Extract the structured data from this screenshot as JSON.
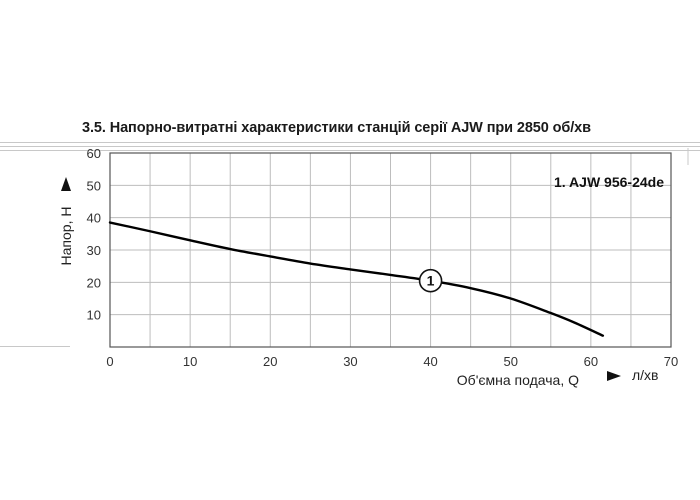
{
  "title": "3.5. Напорно-витратні характеристики станцій серії AJW при 2850 об/хв",
  "chart_data": {
    "type": "line",
    "xlabel": "Об'ємна подача, Q",
    "xunit": "л/хв",
    "ylabel": "Напор, Н",
    "xlim": [
      0,
      70
    ],
    "ylim": [
      0,
      60
    ],
    "x_ticks": [
      0,
      10,
      20,
      30,
      40,
      50,
      60,
      70
    ],
    "y_ticks": [
      10,
      20,
      30,
      40,
      50,
      60
    ],
    "grid": true,
    "legend_text": "1. AJW 956-24de",
    "series": [
      {
        "name": "1",
        "x": [
          0,
          5,
          10,
          15,
          20,
          25,
          30,
          35,
          40,
          45,
          50,
          55,
          58,
          61.5
        ],
        "y": [
          38.5,
          35.8,
          33,
          30.3,
          28,
          25.8,
          24,
          22.3,
          20.5,
          18.2,
          15,
          10.5,
          7.5,
          3.5
        ],
        "marker_label": "1",
        "marker_x": 40,
        "marker_y": 20.5
      }
    ],
    "colors": {
      "line": "#000000",
      "grid": "#bdbdbd",
      "frame": "#555555"
    }
  }
}
